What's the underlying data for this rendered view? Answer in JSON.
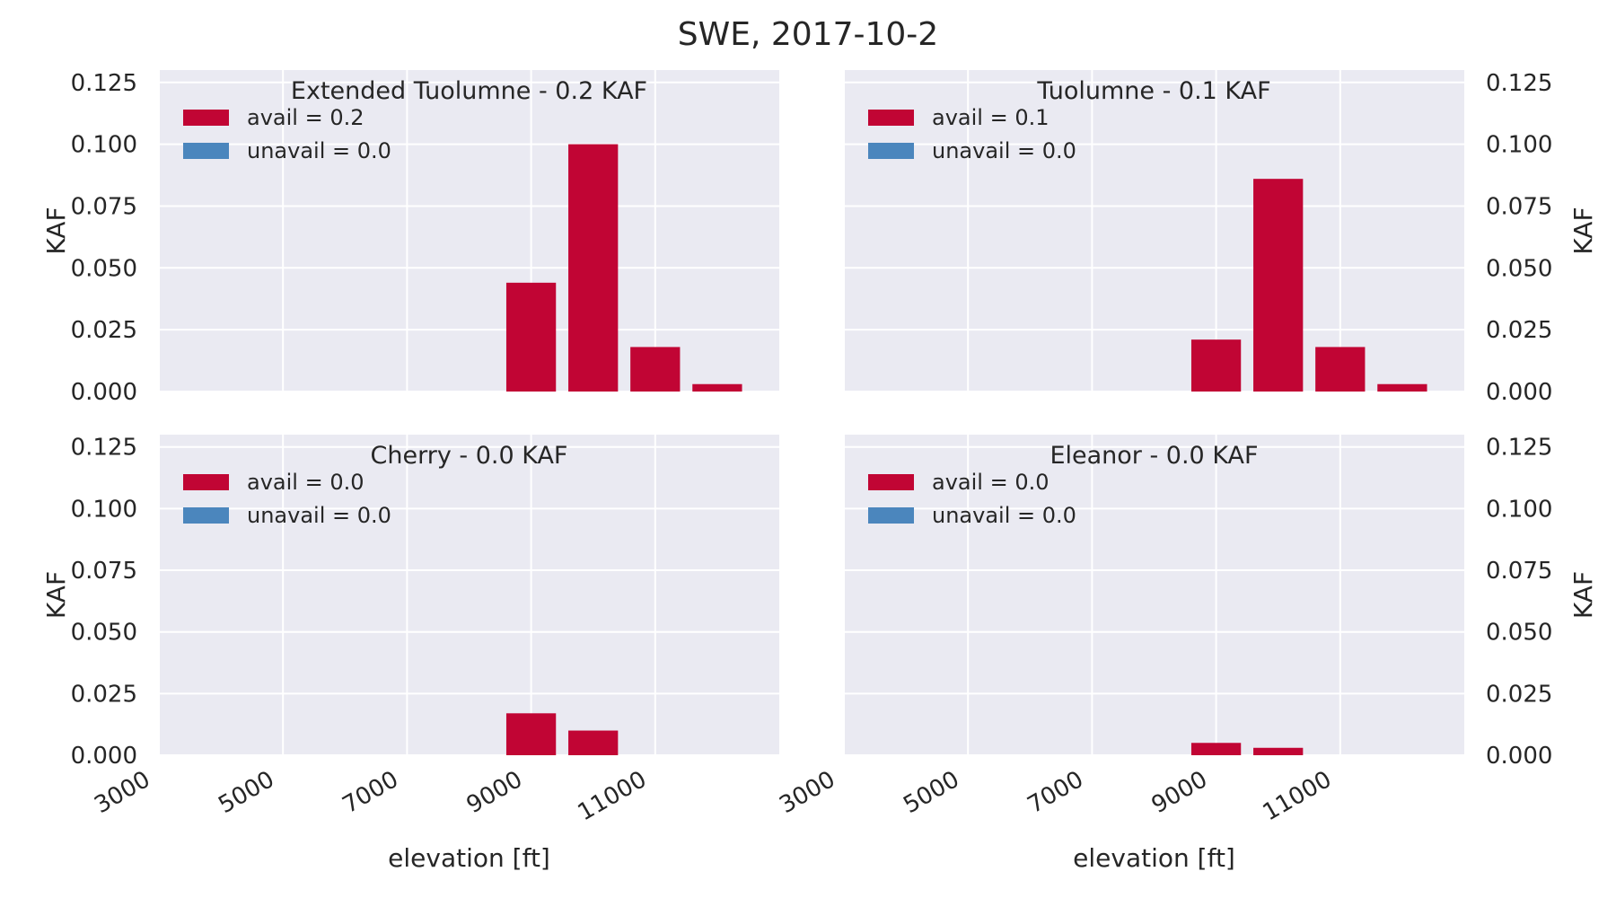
{
  "title": "SWE, 2017-10-2",
  "colors": {
    "avail": "#c10534",
    "unavail": "#4b86bd",
    "axes_bg": "#eaeaf2",
    "grid": "#ffffff",
    "text": "#262626"
  },
  "chart_data": [
    {
      "type": "bar",
      "title": "Extended Tuolumne - 0.2 KAF",
      "ylabel": "KAF",
      "xlabel": "",
      "ylim": [
        0,
        0.13
      ],
      "xlim": [
        3000,
        13000
      ],
      "xticks": [
        "3000",
        "5000",
        "7000",
        "9000",
        "11000"
      ],
      "yticks": [
        "0.000",
        "0.025",
        "0.050",
        "0.075",
        "0.100",
        "0.125"
      ],
      "legend": [
        "avail = 0.2",
        "unavail = 0.0"
      ],
      "legend_position": "upper-left",
      "ylabel_side": "left",
      "x": [
        9000,
        10000,
        11000,
        12000
      ],
      "series": [
        {
          "name": "avail = 0.2",
          "values": [
            0.044,
            0.1,
            0.018,
            0.003
          ]
        },
        {
          "name": "unavail = 0.0",
          "values": [
            0,
            0,
            0,
            0
          ]
        }
      ]
    },
    {
      "type": "bar",
      "title": "Tuolumne - 0.1 KAF",
      "ylabel": "KAF",
      "xlabel": "",
      "ylim": [
        0,
        0.13
      ],
      "xlim": [
        3000,
        13000
      ],
      "xticks": [
        "3000",
        "5000",
        "7000",
        "9000",
        "11000"
      ],
      "yticks": [
        "0.000",
        "0.025",
        "0.050",
        "0.075",
        "0.100",
        "0.125"
      ],
      "legend": [
        "avail = 0.1",
        "unavail = 0.0"
      ],
      "legend_position": "upper-left",
      "ylabel_side": "right",
      "x": [
        9000,
        10000,
        11000,
        12000
      ],
      "series": [
        {
          "name": "avail = 0.1",
          "values": [
            0.021,
            0.086,
            0.018,
            0.003
          ]
        },
        {
          "name": "unavail = 0.0",
          "values": [
            0,
            0,
            0,
            0
          ]
        }
      ]
    },
    {
      "type": "bar",
      "title": "Cherry - 0.0 KAF",
      "ylabel": "KAF",
      "xlabel": "elevation [ft]",
      "ylim": [
        0,
        0.13
      ],
      "xlim": [
        3000,
        13000
      ],
      "xticks": [
        "3000",
        "5000",
        "7000",
        "9000",
        "11000"
      ],
      "yticks": [
        "0.000",
        "0.025",
        "0.050",
        "0.075",
        "0.100",
        "0.125"
      ],
      "legend": [
        "avail = 0.0",
        "unavail = 0.0"
      ],
      "legend_position": "upper-left",
      "ylabel_side": "left",
      "x": [
        9000,
        10000,
        11000,
        12000
      ],
      "series": [
        {
          "name": "avail = 0.0",
          "values": [
            0.017,
            0.01,
            0,
            0
          ]
        },
        {
          "name": "unavail = 0.0",
          "values": [
            0,
            0,
            0,
            0
          ]
        }
      ]
    },
    {
      "type": "bar",
      "title": "Eleanor - 0.0 KAF",
      "ylabel": "KAF",
      "xlabel": "elevation [ft]",
      "ylim": [
        0,
        0.13
      ],
      "xlim": [
        3000,
        13000
      ],
      "xticks": [
        "3000",
        "5000",
        "7000",
        "9000",
        "11000"
      ],
      "yticks": [
        "0.000",
        "0.025",
        "0.050",
        "0.075",
        "0.100",
        "0.125"
      ],
      "legend": [
        "avail = 0.0",
        "unavail = 0.0"
      ],
      "legend_position": "upper-left",
      "ylabel_side": "right",
      "x": [
        9000,
        10000,
        11000,
        12000
      ],
      "series": [
        {
          "name": "avail = 0.0",
          "values": [
            0.005,
            0.003,
            0,
            0
          ]
        },
        {
          "name": "unavail = 0.0",
          "values": [
            0,
            0,
            0,
            0
          ]
        }
      ]
    }
  ]
}
